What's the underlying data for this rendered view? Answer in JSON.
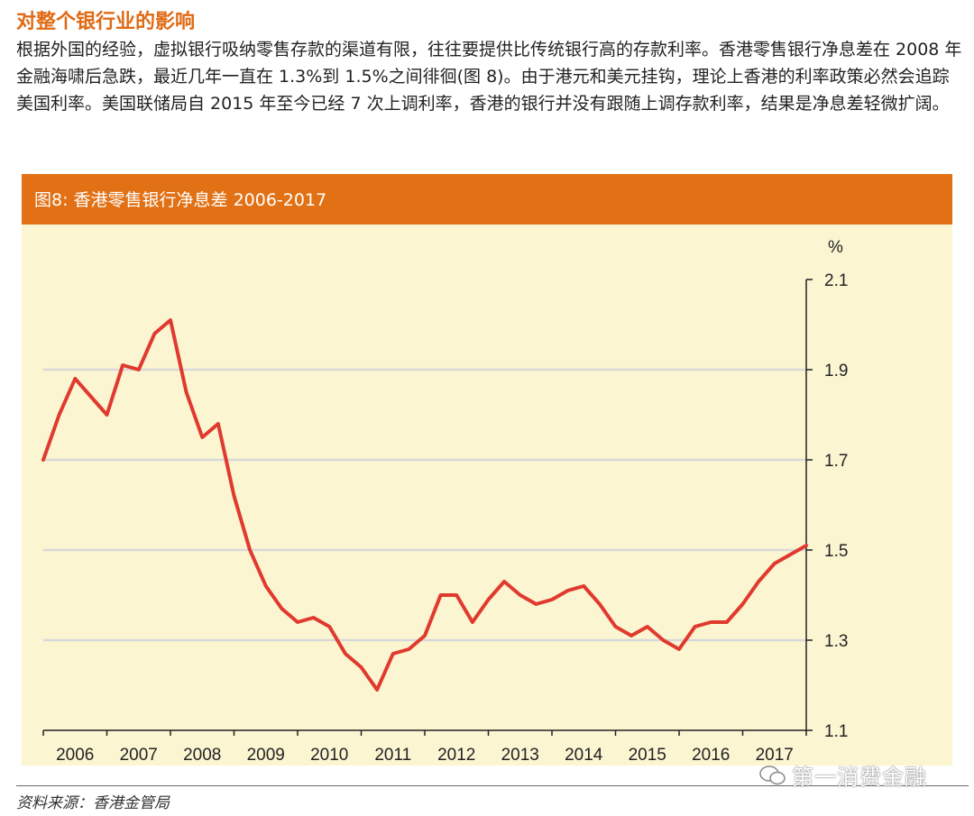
{
  "section_title": "对整个银行业的影响",
  "paragraph": "根据外国的经验，虚拟银行吸纳零售存款的渠道有限，往往要提供比传统银行高的存款利率。香港零售银行净息差在 2008 年金融海啸后急跌，最近几年一直在 1.3%到 1.5%之间徘徊(图 8)。由于港元和美元挂钩，理论上香港的利率政策必然会追踪美国利率。美国联储局自 2015 年至今已经 7 次上调利率，香港的银行并没有跟随上调存款利率，结果是净息差轻微扩阔。",
  "figure_title": "图8: 香港零售银行净息差 2006-2017",
  "source_text": "资料来源：香港金管局",
  "watermark_text": "第一消费金融",
  "colors": {
    "accent": "#E27115",
    "line": "#E03A2E",
    "plot_bg": "#FCF5D2",
    "grid": "#D8D8D8"
  },
  "chart_data": {
    "type": "line",
    "title": "图8: 香港零售银行净息差 2006-2017",
    "ylabel": "%",
    "ylim": [
      1.1,
      2.1
    ],
    "yticks": [
      1.1,
      1.3,
      1.5,
      1.7,
      1.9,
      2.1
    ],
    "ytick_labels": [
      "1.1",
      "1.3",
      "1.5",
      "1.7",
      "1.9",
      "2.1"
    ],
    "xlim": [
      2006.0,
      2018.0
    ],
    "xtick_labels": [
      "2006",
      "2007",
      "2008",
      "2009",
      "2010",
      "2011",
      "2012",
      "2013",
      "2014",
      "2015",
      "2016",
      "2017"
    ],
    "grid": "horizontal",
    "series": [
      {
        "x": [
          2006.0,
          2006.25,
          2006.5,
          2006.75,
          2007.0,
          2007.25,
          2007.5,
          2007.75,
          2008.0,
          2008.25,
          2008.5,
          2008.75,
          2009.0,
          2009.25,
          2009.5,
          2009.75,
          2010.0,
          2010.25,
          2010.5,
          2010.75,
          2011.0,
          2011.25,
          2011.5,
          2011.75,
          2012.0,
          2012.25,
          2012.5,
          2012.75,
          2013.0,
          2013.25,
          2013.5,
          2013.75,
          2014.0,
          2014.25,
          2014.5,
          2014.75,
          2015.0,
          2015.25,
          2015.5,
          2015.75,
          2016.0,
          2016.25,
          2016.5,
          2016.75,
          2017.0,
          2017.25,
          2017.5,
          2017.75,
          2018.0
        ],
        "values": [
          1.7,
          1.8,
          1.88,
          1.84,
          1.8,
          1.91,
          1.9,
          1.98,
          2.01,
          1.85,
          1.75,
          1.78,
          1.62,
          1.5,
          1.42,
          1.37,
          1.34,
          1.35,
          1.33,
          1.27,
          1.24,
          1.19,
          1.27,
          1.28,
          1.31,
          1.4,
          1.4,
          1.34,
          1.39,
          1.43,
          1.4,
          1.38,
          1.39,
          1.41,
          1.42,
          1.38,
          1.33,
          1.31,
          1.33,
          1.3,
          1.28,
          1.33,
          1.34,
          1.34,
          1.38,
          1.43,
          1.47,
          1.49,
          1.51
        ]
      }
    ]
  }
}
